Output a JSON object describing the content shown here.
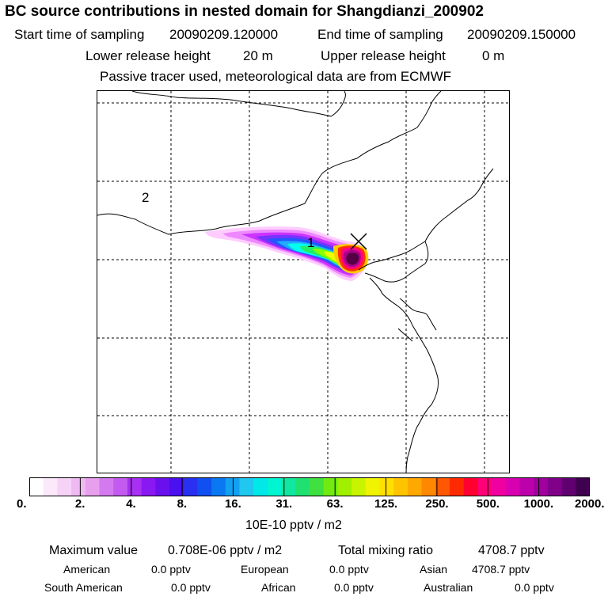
{
  "title": "BC  source contributions in nested domain for Shangdianzi_200902",
  "header": {
    "start_label": "Start time of sampling",
    "start_value": "20090209.120000",
    "end_label": "End time of sampling",
    "end_value": "20090209.150000",
    "lower_label": "Lower release height",
    "lower_value": "20 m",
    "upper_label": "Upper release height",
    "upper_value": "0 m",
    "tracer_note": "Passive tracer used, meteorological data are from ECMWF"
  },
  "map": {
    "labels": [
      "2",
      "1"
    ],
    "receptor_marker": "x-cross-icon",
    "plume_colors": [
      "#ffccff",
      "#ee88ff",
      "#cc33ff",
      "#7733ff",
      "#2255ff",
      "#22aaff",
      "#00ffee",
      "#22ee66",
      "#88ff00",
      "#eeff00",
      "#ffcc00",
      "#ff3300",
      "#ff0088",
      "#aa0088",
      "#550044"
    ]
  },
  "colorbar": {
    "tick_labels": [
      "0.",
      "2.",
      "4.",
      "8.",
      "16.",
      "31.",
      "63.",
      "125.",
      "250.",
      "500.",
      "1000.",
      "2000."
    ],
    "colors": [
      "#ffffff",
      "#fbe8fb",
      "#f6d3f6",
      "#efbaf2",
      "#e8a0ee",
      "#d47aee",
      "#c45bf0",
      "#a830f2",
      "#8a18f0",
      "#6a10ee",
      "#4a10f0",
      "#2a30f2",
      "#1050f0",
      "#0a78f0",
      "#12a0f0",
      "#20c8f0",
      "#00e8e8",
      "#00f5d0",
      "#10e8a0",
      "#20e070",
      "#40e040",
      "#70ea10",
      "#a0f000",
      "#c8f400",
      "#f0f400",
      "#ffe000",
      "#ffc400",
      "#ffa800",
      "#ff8800",
      "#ff5800",
      "#ff2a00",
      "#ff0030",
      "#ff0078",
      "#f000a0",
      "#d800b0",
      "#bc00ac",
      "#a0009e",
      "#80008a",
      "#600070",
      "#400050"
    ],
    "unit": "10E-10 pptv / m2"
  },
  "footer": {
    "max_label": "Maximum value",
    "max_value": "0.708E-06 pptv / m2",
    "total_label": "Total mixing ratio",
    "total_value": "4708.7 pptv",
    "regions": [
      {
        "name": "American",
        "value": "0.0 pptv"
      },
      {
        "name": "European",
        "value": "0.0 pptv"
      },
      {
        "name": "Asian",
        "value": "4708.7 pptv"
      },
      {
        "name": "South American",
        "value": "0.0 pptv"
      },
      {
        "name": "African",
        "value": "0.0 pptv"
      },
      {
        "name": "Australian",
        "value": "0.0 pptv"
      }
    ]
  }
}
